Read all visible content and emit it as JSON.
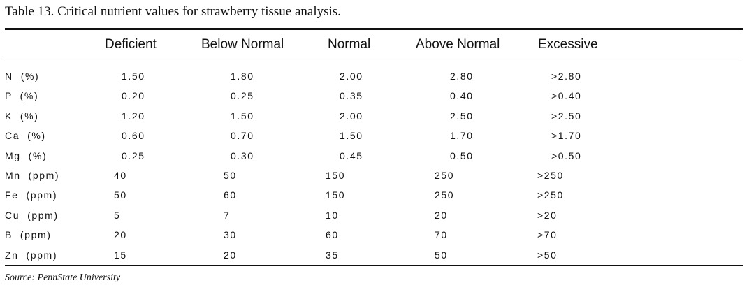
{
  "caption": "Table 13. Critical nutrient values for strawberry tissue analysis.",
  "headers": [
    "Deficient",
    "Below Normal",
    "Normal",
    "Above Normal",
    "Excessive"
  ],
  "rows": [
    {
      "nutrient": "N  (%)",
      "deficient": "1.50",
      "below_normal": "1.80",
      "normal": "2.00",
      "above_normal": "2.80",
      "excessive": ">2.80"
    },
    {
      "nutrient": "P  (%)",
      "deficient": "0.20",
      "below_normal": "0.25",
      "normal": "0.35",
      "above_normal": "0.40",
      "excessive": ">0.40"
    },
    {
      "nutrient": "K  (%)",
      "deficient": "1.20",
      "below_normal": "1.50",
      "normal": "2.00",
      "above_normal": "2.50",
      "excessive": ">2.50"
    },
    {
      "nutrient": "Ca  (%)",
      "deficient": "0.60",
      "below_normal": "0.70",
      "normal": "1.50",
      "above_normal": "1.70",
      "excessive": ">1.70"
    },
    {
      "nutrient": "Mg  (%)",
      "deficient": "0.25",
      "below_normal": "0.30",
      "normal": "0.45",
      "above_normal": "0.50",
      "excessive": ">0.50"
    },
    {
      "nutrient": "Mn  (ppm)",
      "deficient": "40",
      "below_normal": "50",
      "normal": "150",
      "above_normal": "250",
      "excessive": ">250"
    },
    {
      "nutrient": "Fe  (ppm)",
      "deficient": "50",
      "below_normal": "60",
      "normal": "150",
      "above_normal": "250",
      "excessive": ">250"
    },
    {
      "nutrient": "Cu  (ppm)",
      "deficient": "5",
      "below_normal": "7",
      "normal": "10",
      "above_normal": "20",
      "excessive": ">20"
    },
    {
      "nutrient": "B  (ppm)",
      "deficient": "20",
      "below_normal": "30",
      "normal": "60",
      "above_normal": "70",
      "excessive": ">70"
    },
    {
      "nutrient": "Zn  (ppm)",
      "deficient": "15",
      "below_normal": "20",
      "normal": "35",
      "above_normal": "50",
      "excessive": ">50"
    }
  ],
  "source": "Source: PennState University"
}
